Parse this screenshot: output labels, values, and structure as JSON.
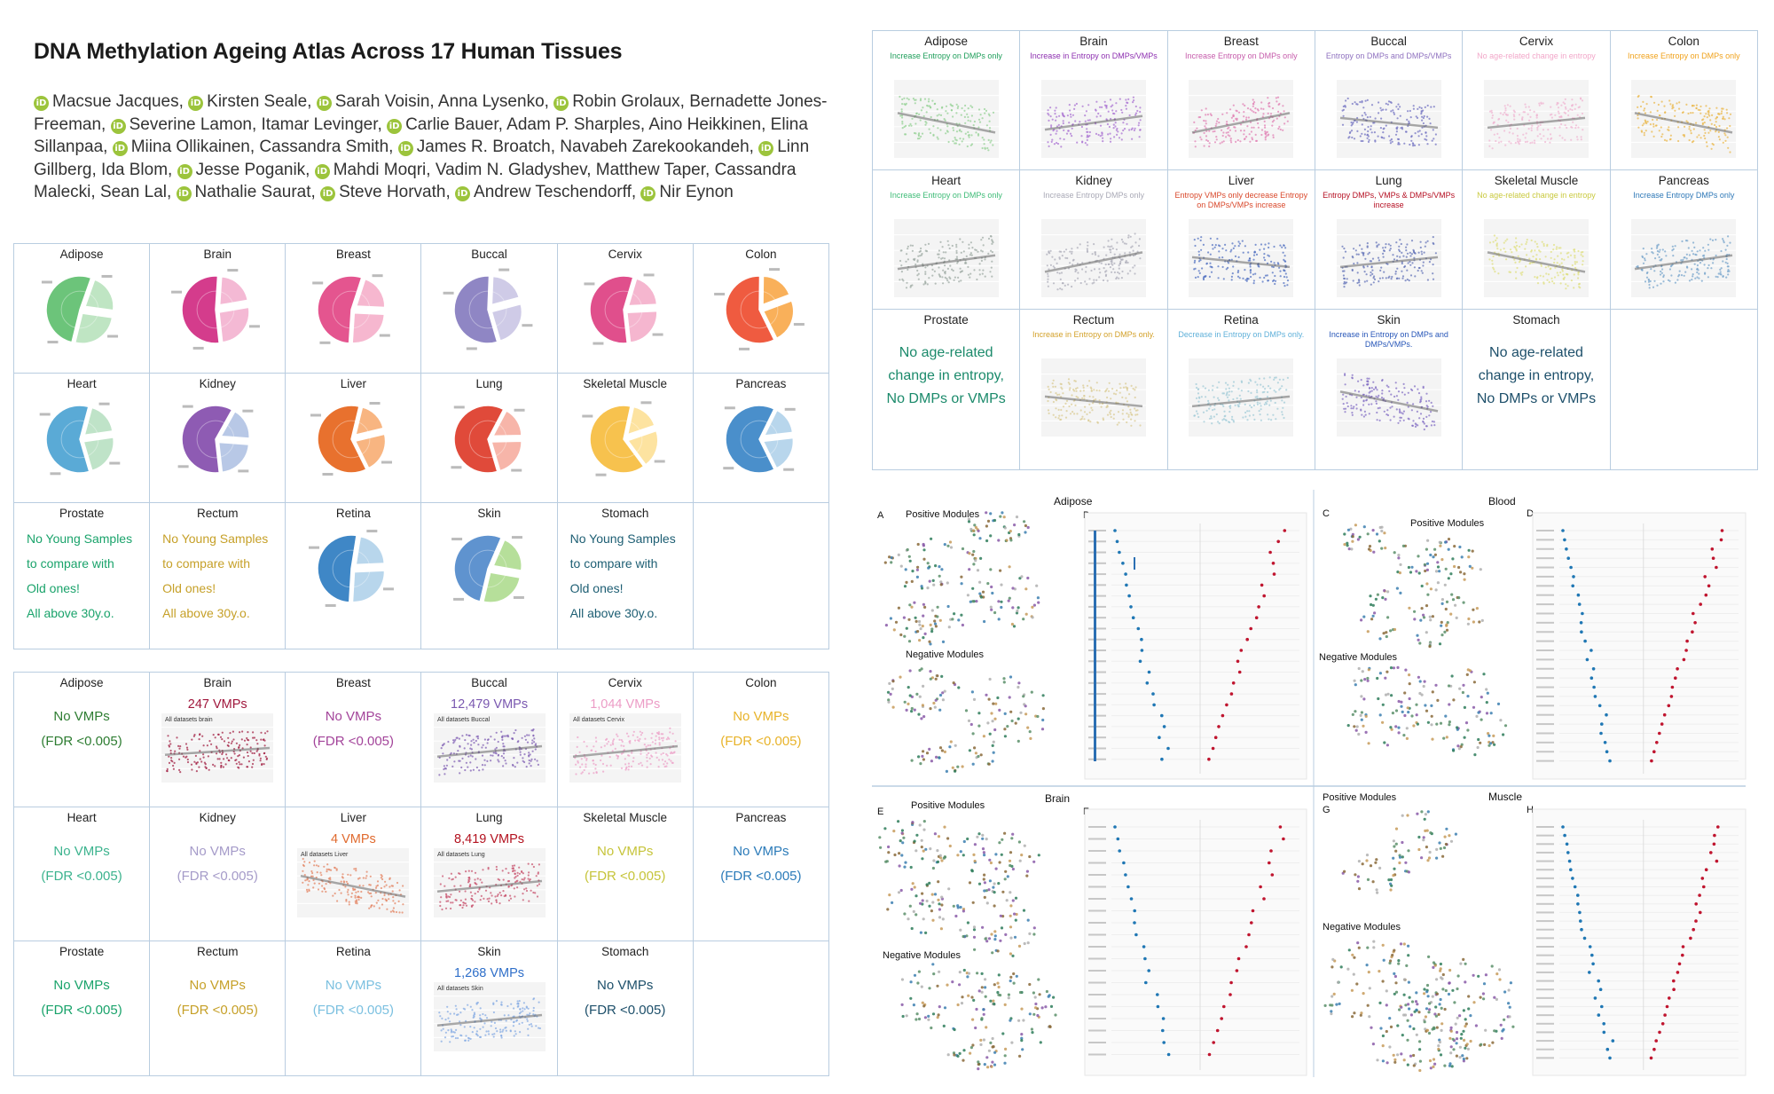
{
  "title": "DNA Methylation Ageing Atlas Across 17 Human Tissues",
  "authors": [
    {
      "name": "Macsue Jacques",
      "orcid": true
    },
    {
      "name": "Kirsten Seale",
      "orcid": true
    },
    {
      "name": "Sarah Voisin",
      "orcid": true
    },
    {
      "name": "Anna Lysenko",
      "orcid": false
    },
    {
      "name": "Robin Grolaux",
      "orcid": true
    },
    {
      "name": "Bernadette Jones-Freeman",
      "orcid": false
    },
    {
      "name": "Severine Lamon",
      "orcid": true
    },
    {
      "name": "Itamar Levinger",
      "orcid": false
    },
    {
      "name": "Carlie Bauer",
      "orcid": true
    },
    {
      "name": "Adam P. Sharples",
      "orcid": false
    },
    {
      "name": "Aino Heikkinen",
      "orcid": false
    },
    {
      "name": "Elina Sillanpaa",
      "orcid": false
    },
    {
      "name": "Miina Ollikainen",
      "orcid": true
    },
    {
      "name": "Cassandra Smith",
      "orcid": false
    },
    {
      "name": "James R. Broatch",
      "orcid": true
    },
    {
      "name": "Navabeh Zarekookandeh",
      "orcid": false
    },
    {
      "name": "Linn Gillberg",
      "orcid": true
    },
    {
      "name": "Ida Blom",
      "orcid": false
    },
    {
      "name": "Jesse Poganik",
      "orcid": true
    },
    {
      "name": "Mahdi Moqri",
      "orcid": true
    },
    {
      "name": "Vadim N. Gladyshev",
      "orcid": false
    },
    {
      "name": "Matthew Taper",
      "orcid": false
    },
    {
      "name": "Cassandra Malecki",
      "orcid": false
    },
    {
      "name": "Sean Lal",
      "orcid": false
    },
    {
      "name": "Nathalie Saurat",
      "orcid": true
    },
    {
      "name": "Steve Horvath",
      "orcid": true
    },
    {
      "name": "Andrew Teschendorff",
      "orcid": true
    },
    {
      "name": "Nir Eynon",
      "orcid": true
    }
  ],
  "pies": [
    {
      "tissue": "Adipose",
      "color": "#6cc47a",
      "light": "#bfe5c3"
    },
    {
      "tissue": "Brain",
      "color": "#d43c8c",
      "light": "#f4b9d4"
    },
    {
      "tissue": "Breast",
      "color": "#e4558f",
      "light": "#f6b7cf"
    },
    {
      "tissue": "Buccal",
      "color": "#8f86c4",
      "light": "#cfcbe7"
    },
    {
      "tissue": "Cervix",
      "color": "#e04f8c",
      "light": "#f5b6cf"
    },
    {
      "tissue": "Colon",
      "color": "#ef5b40",
      "light": "#f9b05a"
    },
    {
      "tissue": "Heart",
      "color": "#5aaad6",
      "light": "#bfe3c8"
    },
    {
      "tissue": "Kidney",
      "color": "#8e5bb3",
      "light": "#b8c8e6"
    },
    {
      "tissue": "Liver",
      "color": "#e8712e",
      "light": "#f8b581"
    },
    {
      "tissue": "Lung",
      "color": "#e04a3a",
      "light": "#f7b5a9"
    },
    {
      "tissue": "Skeletal Muscle",
      "color": "#f7c24e",
      "light": "#fde3a0"
    },
    {
      "tissue": "Pancreas",
      "color": "#4a8fcb",
      "light": "#b8d6ec"
    },
    {
      "tissue": "Prostate",
      "color": "",
      "light": "",
      "note": [
        "No Young Samples",
        "to compare with",
        "Old ones!",
        "All above 30y.o."
      ],
      "note_color": "#1aa36b"
    },
    {
      "tissue": "Rectum",
      "color": "",
      "light": "",
      "note": [
        "No Young Samples",
        "to compare with",
        "Old ones!",
        "All above 30y.o."
      ],
      "note_color": "#c6a028"
    },
    {
      "tissue": "Retina",
      "color": "#3f87c6",
      "light": "#b8d6ec"
    },
    {
      "tissue": "Skin",
      "color": "#5f93cf",
      "light": "#b6df9a"
    },
    {
      "tissue": "Stomach",
      "color": "",
      "light": "",
      "note": [
        "No Young Samples",
        "to compare with",
        "Old ones!",
        "All above 30y.o."
      ],
      "note_color": "#1d5e73"
    },
    {
      "tissue": "",
      "color": "",
      "light": ""
    }
  ],
  "vmps": [
    {
      "tissue": "Adipose",
      "line1": "No VMPs",
      "line2": "(FDR <0.005)",
      "color": "#2e7d32",
      "plot": false
    },
    {
      "tissue": "Brain",
      "line1": "247 VMPs",
      "line2": "",
      "color": "#a0173c",
      "plot": true,
      "plot_title": "All datasets brain",
      "pcolor": "#a0173c"
    },
    {
      "tissue": "Breast",
      "line1": "No VMPs",
      "line2": "(FDR <0.005)",
      "color": "#a3449a",
      "plot": false
    },
    {
      "tissue": "Buccal",
      "line1": "12,479 VMPs",
      "line2": "",
      "color": "#7a58b0",
      "plot": true,
      "plot_title": "All datasets Buccal",
      "pcolor": "#7a58b0"
    },
    {
      "tissue": "Cervix",
      "line1": "1,044 VMPs",
      "line2": "",
      "color": "#ec9cc6",
      "plot": true,
      "plot_title": "All datasets Cervix",
      "pcolor": "#ec9cc6"
    },
    {
      "tissue": "Colon",
      "line1": "No VMPs",
      "line2": "(FDR <0.005)",
      "color": "#e8b32a",
      "plot": false
    },
    {
      "tissue": "Heart",
      "line1": "No VMPs",
      "line2": "(FDR <0.005)",
      "color": "#3cb38e",
      "plot": false
    },
    {
      "tissue": "Kidney",
      "line1": "No VMPs",
      "line2": "(FDR <0.005)",
      "color": "#a59bc9",
      "plot": false
    },
    {
      "tissue": "Liver",
      "line1": "4 VMPs",
      "line2": "",
      "color": "#e06a2e",
      "plot": true,
      "plot_title": "All datasets Liver",
      "pcolor": "#e27d5a"
    },
    {
      "tissue": "Lung",
      "line1": "8,419 VMPs",
      "line2": "",
      "color": "#b3121f",
      "plot": true,
      "plot_title": "All datasets Lung",
      "pcolor": "#c64a66"
    },
    {
      "tissue": "Skeletal Muscle",
      "line1": "No VMPs",
      "line2": "(FDR <0.005)",
      "color": "#c6c43a",
      "plot": false
    },
    {
      "tissue": "Pancreas",
      "line1": "No VMPs",
      "line2": "(FDR <0.005)",
      "color": "#2b7bb9",
      "plot": false
    },
    {
      "tissue": "Prostate",
      "line1": "No VMPs",
      "line2": "(FDR <0.005)",
      "color": "#1aa36b",
      "plot": false
    },
    {
      "tissue": "Rectum",
      "line1": "No VMPs",
      "line2": "(FDR <0.005)",
      "color": "#c6a028",
      "plot": false
    },
    {
      "tissue": "Retina",
      "line1": "No VMPs",
      "line2": "(FDR <0.005)",
      "color": "#7bc0e0",
      "plot": false
    },
    {
      "tissue": "Skin",
      "line1": "1,268 VMPs",
      "line2": "",
      "color": "#2f6fc9",
      "plot": true,
      "plot_title": "All datasets Skin",
      "pcolor": "#7fa6e3"
    },
    {
      "tissue": "Stomach",
      "line1": "No VMPs",
      "line2": "(FDR <0.005)",
      "color": "#1d4f6a",
      "plot": false
    },
    {
      "tissue": "",
      "line1": "",
      "line2": "",
      "color": "#000",
      "plot": false
    }
  ],
  "entropy": [
    {
      "tissue": "Adipose",
      "desc": "Increase Entropy on DMPs only",
      "color": "#1e9e5a",
      "pcolor": "#8fcf8f"
    },
    {
      "tissue": "Brain",
      "desc": "Increase in Entropy on DMPs/VMPs",
      "color": "#8d2fb0",
      "pcolor": "#a56bd0"
    },
    {
      "tissue": "Breast",
      "desc": "Increase Entropy on DMPs only",
      "color": "#c65cab",
      "pcolor": "#e07bb0"
    },
    {
      "tissue": "Buccal",
      "desc": "Entropy on DMPs and DMPs/VMPs",
      "color": "#8f71bf",
      "pcolor": "#6b6bbf"
    },
    {
      "tissue": "Cervix",
      "desc": "No age-related change in entropy",
      "color": "#f2a7c9",
      "pcolor": "#f0b2d0"
    },
    {
      "tissue": "Colon",
      "desc": "Increase Entropy on DMPs only",
      "color": "#f0a21c",
      "pcolor": "#e9b543"
    },
    {
      "tissue": "Heart",
      "desc": "Increase Entropy on DMPs only",
      "color": "#3dbb76",
      "pcolor": "#9aa7a0"
    },
    {
      "tissue": "Kidney",
      "desc": "Increase Entropy DMPs only",
      "color": "#a9a9b6",
      "pcolor": "#a9a9b6"
    },
    {
      "tissue": "Liver",
      "desc": "Entropy VMPs only decrease Entropy on DMPs/VMPs increase",
      "color": "#d9482b",
      "pcolor": "#4a6bbf"
    },
    {
      "tissue": "Lung",
      "desc": "Entropy DMPs, VMPs & DMPs/VMPs increase",
      "color": "#b50f22",
      "pcolor": "#5b6cb5"
    },
    {
      "tissue": "Skeletal Muscle",
      "desc": "No age-related change in entropy",
      "color": "#c9c93e",
      "pcolor": "#dede7a"
    },
    {
      "tissue": "Pancreas",
      "desc": "Increase Entropy DMPs only",
      "color": "#2e78b7",
      "pcolor": "#6f9fc9"
    },
    {
      "tissue": "Prostate",
      "desc": "",
      "color": "#1b8a6b",
      "pcolor": "",
      "note": [
        "No age-related",
        "change in entropy,",
        "No DMPs or VMPs"
      ]
    },
    {
      "tissue": "Rectum",
      "desc": "Increase in Entropy on DMPs only.",
      "color": "#d3a12a",
      "pcolor": "#d9c98e"
    },
    {
      "tissue": "Retina",
      "desc": "Decrease in Entropy on DMPs only.",
      "color": "#5fb0d9",
      "pcolor": "#9cc9d6"
    },
    {
      "tissue": "Skin",
      "desc": "Increase in Entropy on DMPs and DMPs/VMPs.",
      "color": "#2756b8",
      "pcolor": "#7d68c2"
    },
    {
      "tissue": "Stomach",
      "desc": "",
      "color": "#1d4f6a",
      "pcolor": "",
      "note": [
        "No age-related",
        "change in entropy,",
        "No DMPs or VMPs"
      ]
    },
    {
      "tissue": "",
      "desc": "",
      "color": "#000",
      "pcolor": ""
    }
  ],
  "networks": {
    "adipose_title": "Adipose",
    "blood_title": "Blood",
    "brain_title": "Brain",
    "muscle_title": "Muscle",
    "labels": [
      "A",
      "B",
      "C",
      "D",
      "E",
      "F",
      "G",
      "H"
    ],
    "positive": "Positive Modules",
    "negative": "Negative Modules"
  }
}
